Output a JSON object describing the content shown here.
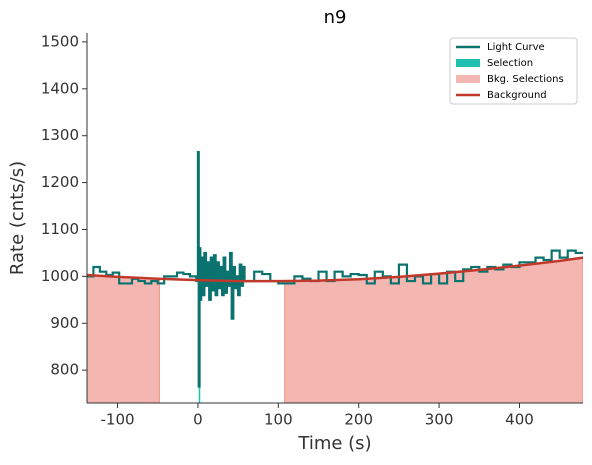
{
  "chart_data": {
    "type": "line",
    "title": "n9",
    "x_label": "Time (s)",
    "y_label": "Rate (cnts/s)",
    "xlim": [
      -138,
      479
    ],
    "ylim": [
      730,
      1519
    ],
    "xticks": [
      -100,
      0,
      100,
      200,
      300,
      400
    ],
    "yticks": [
      800,
      900,
      1000,
      1100,
      1200,
      1300,
      1400,
      1500
    ],
    "legend": "upper right",
    "series": [
      {
        "name": "Light Curve",
        "color": "#0b736f",
        "step": "post",
        "x": [
          -138,
          -130,
          -122,
          -114,
          -106,
          -98,
          -90,
          -82,
          -74,
          -66,
          -58,
          -50,
          -42,
          -34,
          -26,
          -18,
          -10,
          -2,
          -1,
          0,
          1,
          2,
          3,
          4,
          6,
          8,
          10,
          12,
          14,
          16,
          18,
          20,
          22,
          24,
          26,
          28,
          30,
          32,
          34,
          36,
          38,
          40,
          42,
          44,
          46,
          48,
          50,
          52,
          54,
          56,
          58,
          60,
          70,
          80,
          90,
          100,
          110,
          120,
          130,
          140,
          150,
          160,
          170,
          180,
          190,
          200,
          210,
          220,
          230,
          240,
          250,
          260,
          270,
          280,
          290,
          300,
          310,
          320,
          330,
          340,
          350,
          360,
          370,
          380,
          390,
          400,
          410,
          420,
          430,
          440,
          450,
          460,
          470
        ],
        "values": [
          1000,
          1020,
          1010,
          1003,
          1008,
          985,
          985,
          995,
          990,
          985,
          990,
          985,
          1000,
          1000,
          1008,
          1005,
          1000,
          990,
          1000,
          1265,
          765,
          1060,
          950,
          1040,
          960,
          1050,
          980,
          1030,
          950,
          1040,
          970,
          1045,
          960,
          1030,
          975,
          1020,
          960,
          1040,
          965,
          1010,
          980,
          1050,
          910,
          1020,
          975,
          1000,
          960,
          1025,
          980,
          1020,
          990,
          990,
          1010,
          1005,
          990,
          985,
          985,
          1000,
          995,
          990,
          1010,
          990,
          1010,
          1000,
          1005,
          1003,
          985,
          1010,
          1000,
          985,
          1025,
          990,
          1000,
          985,
          1005,
          985,
          1010,
          990,
          1015,
          1020,
          1010,
          1020,
          1015,
          1025,
          1020,
          1030,
          1030,
          1040,
          1035,
          1055,
          1040,
          1055,
          1050
        ]
      },
      {
        "name": "Background",
        "color": "#c0392b",
        "x": [
          -138,
          -100,
          -50,
          0,
          50,
          100,
          150,
          200,
          250,
          300,
          350,
          400,
          450,
          479
        ],
        "values": [
          1003,
          999,
          995,
          992,
          990,
          990,
          991,
          994,
          999,
          1006,
          1014,
          1023,
          1033,
          1040
        ]
      }
    ],
    "selection": {
      "name": "Selection",
      "color": "#1fbfb2",
      "ranges": [
        [
          1,
          2
        ]
      ]
    },
    "bkg_selections": {
      "name": "Bkg. Selections",
      "color": "#f4b6b0",
      "ranges": [
        [
          -138,
          -48
        ],
        [
          108,
          479
        ]
      ]
    }
  }
}
